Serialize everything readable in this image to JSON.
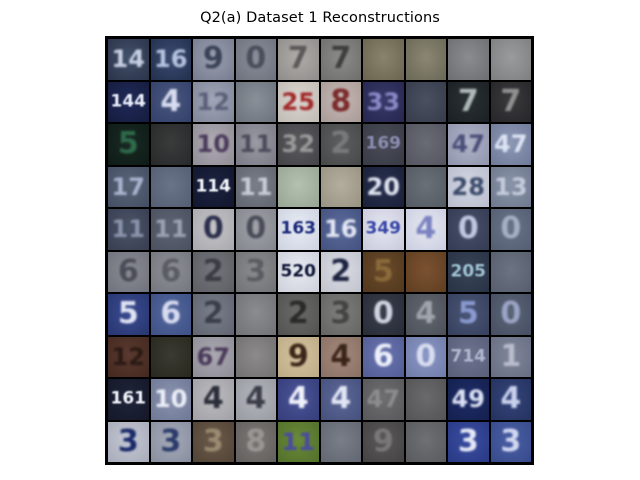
{
  "title": "Q2(a) Dataset 1 Reconstructions",
  "image": {
    "description": "10x10 grid of blurry street-number digit reconstructions",
    "rows": 10,
    "cols": 10,
    "tiles": [
      [
        {
          "bg": [
            "#42506a",
            "#2a3348"
          ],
          "digit": "14",
          "color": "#c8d0e4"
        },
        {
          "bg": [
            "#3a4a70",
            "#23304e"
          ],
          "digit": "16",
          "color": "#b8c4e0"
        },
        {
          "bg": [
            "#9aa0b0",
            "#767c8e"
          ],
          "digit": "9",
          "color": "#3a4258"
        },
        {
          "bg": [
            "#8a8e98",
            "#6e727e"
          ],
          "digit": "0",
          "color": "#4a4e5c"
        },
        {
          "bg": [
            "#b0aca8",
            "#8e8c8a"
          ],
          "digit": "7",
          "color": "#5a5858"
        },
        {
          "bg": [
            "#8c8c8a",
            "#6e6e6c"
          ],
          "digit": "7",
          "color": "#3e3e3e"
        },
        {
          "bg": [
            "#8a826c",
            "#6a6450"
          ],
          "digit": "",
          "color": "#444"
        },
        {
          "bg": [
            "#8a8672",
            "#6a6856"
          ],
          "digit": "",
          "color": "#444"
        },
        {
          "bg": [
            "#8a8c8e",
            "#6c6e72"
          ],
          "digit": "",
          "color": "#444"
        },
        {
          "bg": [
            "#9a9c9c",
            "#7c7e80"
          ],
          "digit": "",
          "color": "#444"
        }
      ],
      [
        {
          "bg": [
            "#202a58",
            "#151c3e"
          ],
          "digit": "144",
          "color": "#e8ecf8"
        },
        {
          "bg": [
            "#4a5880",
            "#32406a"
          ],
          "digit": "4",
          "color": "#d8dcf0"
        },
        {
          "bg": [
            "#a0a6b8",
            "#808698"
          ],
          "digit": "12",
          "color": "#5a6078"
        },
        {
          "bg": [
            "#8a9098",
            "#6c727c"
          ],
          "digit": "",
          "color": "#444"
        },
        {
          "bg": [
            "#dcd6d0",
            "#c0bab4"
          ],
          "digit": "25",
          "color": "#a02828"
        },
        {
          "bg": [
            "#c6b8b4",
            "#a89a96"
          ],
          "digit": "8",
          "color": "#7a2a2a"
        },
        {
          "bg": [
            "#3a3a6a",
            "#262650"
          ],
          "digit": "33",
          "color": "#8a8ac8"
        },
        {
          "bg": [
            "#4a5060",
            "#363c4a"
          ],
          "digit": "",
          "color": "#777"
        },
        {
          "bg": [
            "#2a3034",
            "#1a2024"
          ],
          "digit": "7",
          "color": "#b0b8b8"
        },
        {
          "bg": [
            "#3a3a3c",
            "#26262a"
          ],
          "digit": "7",
          "color": "#909090"
        }
      ],
      [
        {
          "bg": [
            "#1a2a24",
            "#0e1a16"
          ],
          "digit": "5",
          "color": "#2e6a4a"
        },
        {
          "bg": [
            "#3a3c3c",
            "#28292a"
          ],
          "digit": "",
          "color": "#555"
        },
        {
          "bg": [
            "#b0acb4",
            "#908c96"
          ],
          "digit": "10",
          "color": "#4a3a5a"
        },
        {
          "bg": [
            "#9a9aa4",
            "#7a7a86"
          ],
          "digit": "11",
          "color": "#4a4a5a"
        },
        {
          "bg": [
            "#5a5a5e",
            "#444448"
          ],
          "digit": "32",
          "color": "#9a9a9a"
        },
        {
          "bg": [
            "#5c5e60",
            "#46484a"
          ],
          "digit": "2",
          "color": "#7a7a7a"
        },
        {
          "bg": [
            "#4a4c58",
            "#383a46"
          ],
          "digit": "169",
          "color": "#8a8cb0"
        },
        {
          "bg": [
            "#6a6c74",
            "#525460"
          ],
          "digit": "",
          "color": "#555"
        },
        {
          "bg": [
            "#b0b4c8",
            "#9094ac"
          ],
          "digit": "47",
          "color": "#4a4e78"
        },
        {
          "bg": [
            "#8c98b4",
            "#6e7a98"
          ],
          "digit": "47",
          "color": "#dce4f4"
        }
      ],
      [
        {
          "bg": [
            "#5a6478",
            "#444e62"
          ],
          "digit": "17",
          "color": "#a8b4d0"
        },
        {
          "bg": [
            "#6a7488",
            "#545e72"
          ],
          "digit": "",
          "color": "#9aa4bc"
        },
        {
          "bg": [
            "#1c2240",
            "#12172e"
          ],
          "digit": "114",
          "color": "#f4f6fc"
        },
        {
          "bg": [
            "#7a7e88",
            "#60646e"
          ],
          "digit": "11",
          "color": "#c8ccd8"
        },
        {
          "bg": [
            "#b4c0b0",
            "#98a494"
          ],
          "digit": "",
          "color": "#777"
        },
        {
          "bg": [
            "#b4ae9e",
            "#989282"
          ],
          "digit": "",
          "color": "#777"
        },
        {
          "bg": [
            "#283050",
            "#1a2038"
          ],
          "digit": "20",
          "color": "#e0e4f0"
        },
        {
          "bg": [
            "#6a7078",
            "#545a62"
          ],
          "digit": "",
          "color": "#9aa0a8"
        },
        {
          "bg": [
            "#d4d8e4",
            "#b8bccc"
          ],
          "digit": "28",
          "color": "#3a4a6a"
        },
        {
          "bg": [
            "#8a94a8",
            "#6e788e"
          ],
          "digit": "13",
          "color": "#c4ccdc"
        }
      ],
      [
        {
          "bg": [
            "#4c5468",
            "#383e50"
          ],
          "digit": "11",
          "color": "#8a94ac"
        },
        {
          "bg": [
            "#5e6474",
            "#4a505e"
          ],
          "digit": "11",
          "color": "#9ca2b2"
        },
        {
          "bg": [
            "#c4c4c8",
            "#a8a8ae"
          ],
          "digit": "0",
          "color": "#2a2e4a"
        },
        {
          "bg": [
            "#a0a2a8",
            "#84868e"
          ],
          "digit": "0",
          "color": "#4a4c58"
        },
        {
          "bg": [
            "#e8ecf4",
            "#cdd2e0"
          ],
          "digit": "163",
          "color": "#1a2a7a"
        },
        {
          "bg": [
            "#5a6a9c",
            "#44527e"
          ],
          "digit": "16",
          "color": "#e4e8f4"
        },
        {
          "bg": [
            "#e4e6f0",
            "#c8cadc"
          ],
          "digit": "349",
          "color": "#3a48a8"
        },
        {
          "bg": [
            "#e6e8f0",
            "#cacde0"
          ],
          "digit": "4",
          "color": "#7a82c0"
        },
        {
          "bg": [
            "#48506a",
            "#343c54"
          ],
          "digit": "0",
          "color": "#c0c8e0"
        },
        {
          "bg": [
            "#6a7488",
            "#545e72"
          ],
          "digit": "0",
          "color": "#a4aec4"
        }
      ],
      [
        {
          "bg": [
            "#8a8c94",
            "#70727c"
          ],
          "digit": "6",
          "color": "#4a4c58"
        },
        {
          "bg": [
            "#8e9096",
            "#74767e"
          ],
          "digit": "6",
          "color": "#5a5c64"
        },
        {
          "bg": [
            "#74767c",
            "#5c5e64"
          ],
          "digit": "2",
          "color": "#3a3c44"
        },
        {
          "bg": [
            "#8a8c90",
            "#707276"
          ],
          "digit": "3",
          "color": "#5a5c62"
        },
        {
          "bg": [
            "#e8eaf0",
            "#cdd0da"
          ],
          "digit": "520",
          "color": "#101838"
        },
        {
          "bg": [
            "#dcdee6",
            "#c0c2cc"
          ],
          "digit": "2",
          "color": "#1a2240"
        },
        {
          "bg": [
            "#6a4a2a",
            "#52381e"
          ],
          "digit": "5",
          "color": "#8a6a3a"
        },
        {
          "bg": [
            "#7a5230",
            "#603e22"
          ],
          "digit": "",
          "color": "#8a6a3a"
        },
        {
          "bg": [
            "#3a4458",
            "#283244"
          ],
          "digit": "205",
          "color": "#9cc0d0"
        },
        {
          "bg": [
            "#6c7484",
            "#565e6e"
          ],
          "digit": "",
          "color": "#9aa2b2"
        }
      ],
      [
        {
          "bg": [
            "#3a4a90",
            "#283670"
          ],
          "digit": "5",
          "color": "#e0e4f4"
        },
        {
          "bg": [
            "#5468a0",
            "#3e5084"
          ],
          "digit": "6",
          "color": "#d8dcf0"
        },
        {
          "bg": [
            "#7a7e8a",
            "#606470"
          ],
          "digit": "2",
          "color": "#3a3e4a"
        },
        {
          "bg": [
            "#8a8c90",
            "#707276"
          ],
          "digit": "",
          "color": "#555"
        },
        {
          "bg": [
            "#6a6a68",
            "#525250"
          ],
          "digit": "2",
          "color": "#2a2a2a"
        },
        {
          "bg": [
            "#7e7e7c",
            "#646462"
          ],
          "digit": "3",
          "color": "#444"
        },
        {
          "bg": [
            "#3a3e4c",
            "#282c38"
          ],
          "digit": "0",
          "color": "#d0d4e0"
        },
        {
          "bg": [
            "#62666e",
            "#4c5058"
          ],
          "digit": "4",
          "color": "#a0a4ac"
        },
        {
          "bg": [
            "#4a5474",
            "#36405e"
          ],
          "digit": "5",
          "color": "#8a9ad0"
        },
        {
          "bg": [
            "#5c6478",
            "#464e62"
          ],
          "digit": "0",
          "color": "#9aa4c4"
        }
      ],
      [
        {
          "bg": [
            "#5a3a30",
            "#44281e"
          ],
          "digit": "12",
          "color": "#2a1a14"
        },
        {
          "bg": [
            "#3a3a32",
            "#28281e"
          ],
          "digit": "",
          "color": "#555"
        },
        {
          "bg": [
            "#aaa8b0",
            "#8e8c96"
          ],
          "digit": "67",
          "color": "#4a3a5a"
        },
        {
          "bg": [
            "#8c8a8a",
            "#727070"
          ],
          "digit": "",
          "color": "#555"
        },
        {
          "bg": [
            "#d6c4a0",
            "#bcaa86"
          ],
          "digit": "9",
          "color": "#3a2418"
        },
        {
          "bg": [
            "#a48a7c",
            "#887064"
          ],
          "digit": "4",
          "color": "#3a2418"
        },
        {
          "bg": [
            "#6a74b0",
            "#525c94"
          ],
          "digit": "6",
          "color": "#ecf0fa"
        },
        {
          "bg": [
            "#8a96c4",
            "#707ca8"
          ],
          "digit": "0",
          "color": "#d8ddf0"
        },
        {
          "bg": [
            "#6e7490",
            "#585e78"
          ],
          "digit": "714",
          "color": "#b0b6cc"
        },
        {
          "bg": [
            "#80869a",
            "#686e82"
          ],
          "digit": "1",
          "color": "#b8bccc"
        }
      ],
      [
        {
          "bg": [
            "#20243a",
            "#141828"
          ],
          "digit": "161",
          "color": "#f2f4fa"
        },
        {
          "bg": [
            "#8a94b0",
            "#6e7894"
          ],
          "digit": "10",
          "color": "#eceff8"
        },
        {
          "bg": [
            "#bcbcc0",
            "#a0a0a6"
          ],
          "digit": "4",
          "color": "#2a2c38"
        },
        {
          "bg": [
            "#b4b6bc",
            "#989aa2"
          ],
          "digit": "4",
          "color": "#3a3c48"
        },
        {
          "bg": [
            "#4a5498",
            "#363e7a"
          ],
          "digit": "4",
          "color": "#f0f2fa"
        },
        {
          "bg": [
            "#5c6898",
            "#46507c"
          ],
          "digit": "4",
          "color": "#e2e6f4"
        },
        {
          "bg": [
            "#6e6e70",
            "#58585a"
          ],
          "digit": "47",
          "color": "#8c8c8e"
        },
        {
          "bg": [
            "#6a6a6c",
            "#545456"
          ],
          "digit": "",
          "color": "#888"
        },
        {
          "bg": [
            "#1e2c68",
            "#14204e"
          ],
          "digit": "49",
          "color": "#dce2f4"
        },
        {
          "bg": [
            "#34447a",
            "#24325e"
          ],
          "digit": "4",
          "color": "#c8d0ec"
        }
      ],
      [
        {
          "bg": [
            "#c4c8d4",
            "#a8acba"
          ],
          "digit": "3",
          "color": "#1a2a6a"
        },
        {
          "bg": [
            "#a4aab8",
            "#888e9e"
          ],
          "digit": "3",
          "color": "#2a3a6a"
        },
        {
          "bg": [
            "#6a5a4a",
            "#524436"
          ],
          "digit": "3",
          "color": "#9a8a70"
        },
        {
          "bg": [
            "#7a7674",
            "#62605e"
          ],
          "digit": "8",
          "color": "#9a9694"
        },
        {
          "bg": [
            "#6a8a3a",
            "#52702a"
          ],
          "digit": "11",
          "color": "#4a4aa0"
        },
        {
          "bg": [
            "#7a7e88",
            "#626670"
          ],
          "digit": "",
          "color": "#999"
        },
        {
          "bg": [
            "#5a5858",
            "#444242"
          ],
          "digit": "9",
          "color": "#7a7878"
        },
        {
          "bg": [
            "#6e7074",
            "#585a5e"
          ],
          "digit": "",
          "color": "#888"
        },
        {
          "bg": [
            "#3a4ca0",
            "#283a84"
          ],
          "digit": "3",
          "color": "#e4e8f6"
        },
        {
          "bg": [
            "#4a5ea6",
            "#364a8a"
          ],
          "digit": "3",
          "color": "#d0d8f0"
        }
      ]
    ]
  }
}
